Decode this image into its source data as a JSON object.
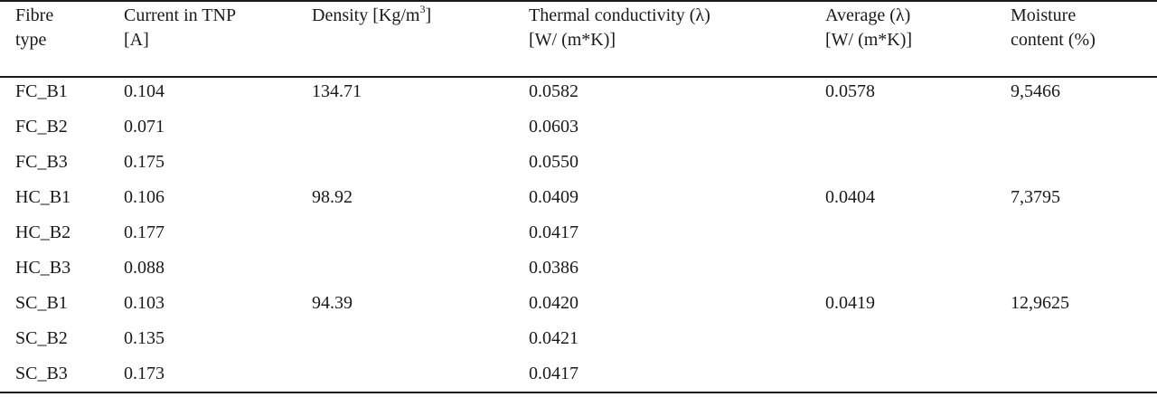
{
  "table": {
    "headers": [
      {
        "line1": "Fibre",
        "line2": "type"
      },
      {
        "line1": "Current in TNP",
        "line2": "[A]"
      },
      {
        "line1": "Density [Kg/m",
        "sup": "3",
        "tail": "]",
        "line2": ""
      },
      {
        "line1": "Thermal conductivity (λ)",
        "line2": "[W/ (m*K)]"
      },
      {
        "line1": "Average (λ)",
        "line2": "[W/ (m*K)]"
      },
      {
        "line1": "Moisture",
        "line2": "content (%)"
      }
    ],
    "rows": [
      [
        "FC_B1",
        "0.104",
        "134.71",
        "0.0582",
        "0.0578",
        "9,5466"
      ],
      [
        "FC_B2",
        "0.071",
        "",
        "0.0603",
        "",
        ""
      ],
      [
        "FC_B3",
        "0.175",
        "",
        "0.0550",
        "",
        ""
      ],
      [
        "HC_B1",
        "0.106",
        "98.92",
        "0.0409",
        "0.0404",
        "7,3795"
      ],
      [
        "HC_B2",
        "0.177",
        "",
        "0.0417",
        "",
        ""
      ],
      [
        "HC_B3",
        "0.088",
        "",
        "0.0386",
        "",
        ""
      ],
      [
        "SC_B1",
        "0.103",
        "94.39",
        "0.0420",
        "0.0419",
        "12,9625"
      ],
      [
        "SC_B2",
        "0.135",
        "",
        "0.0421",
        "",
        ""
      ],
      [
        "SC_B3",
        "0.173",
        "",
        "0.0417",
        "",
        ""
      ]
    ]
  }
}
